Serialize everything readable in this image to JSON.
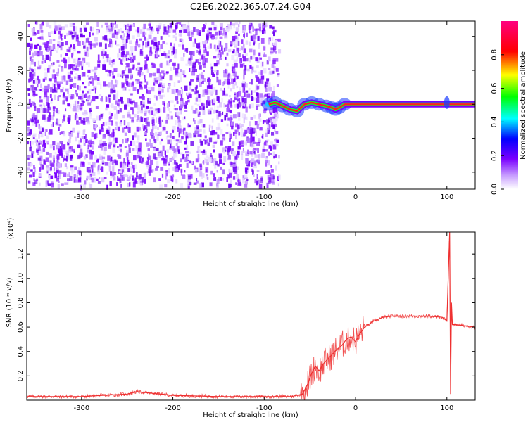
{
  "figure": {
    "title": "C2E6.2022.365.07.24.G04"
  },
  "chart_data": [
    {
      "type": "heatmap",
      "xlabel": "Height of straight line (km)",
      "ylabel": "Frequency (Hz)",
      "xlim": [
        -360,
        131
      ],
      "ylim": [
        -50,
        49
      ],
      "xticks": [
        -300,
        -200,
        -100,
        0,
        100
      ],
      "yticks": [
        -40,
        -20,
        0,
        20,
        40
      ],
      "noise_region_x": [
        -360,
        -80
      ],
      "signal_line": {
        "x": [
          -95,
          -88,
          -80,
          -72,
          -64,
          -56,
          -48,
          -40,
          -32,
          -26,
          -22,
          -18,
          -12,
          0,
          40,
          80,
          131
        ],
        "freq": [
          0,
          1,
          -1,
          -3,
          -4,
          0,
          1,
          0,
          -1,
          -2,
          -3,
          -2,
          0,
          0,
          0,
          0,
          0
        ]
      },
      "colorbar": {
        "label": "Normalized spectral amplitude",
        "range": [
          0.0,
          1.0
        ],
        "ticks": [
          "0.0",
          "0.2",
          "0.4",
          "0.6",
          "0.8"
        ],
        "ticks_values": [
          0.0,
          0.2,
          0.4,
          0.6,
          0.8
        ],
        "colormap": [
          "#ffffff",
          "#7a00ff",
          "#0000ff",
          "#00ffff",
          "#00ff00",
          "#ffff00",
          "#ff0000",
          "#ff0080"
        ]
      }
    },
    {
      "type": "line",
      "xlabel": "Height of straight line (km)",
      "ylabel": "SNR (10 * v/v)",
      "scale_note": "(x10⁴)",
      "xlim": [
        -360,
        131
      ],
      "ylim": [
        0,
        1.38
      ],
      "xticks": [
        -300,
        -200,
        -100,
        0,
        100
      ],
      "yticks": [
        0.2,
        0.4,
        0.6,
        0.8,
        1.0,
        1.2
      ],
      "series": [
        {
          "color": "#ee3030",
          "x": [
            -360,
            -300,
            -250,
            -240,
            -200,
            -150,
            -100,
            -70,
            -58,
            -52,
            -48,
            -44,
            -40,
            -35,
            -30,
            -25,
            -20,
            -15,
            -10,
            -5,
            0,
            5,
            10,
            20,
            30,
            40,
            60,
            80,
            95,
            100,
            103,
            104,
            105,
            106,
            110,
            120,
            131
          ],
          "values": [
            0.03,
            0.03,
            0.05,
            0.07,
            0.04,
            0.03,
            0.03,
            0.03,
            0.05,
            0.14,
            0.22,
            0.28,
            0.24,
            0.3,
            0.34,
            0.38,
            0.42,
            0.45,
            0.5,
            0.52,
            0.48,
            0.55,
            0.6,
            0.65,
            0.68,
            0.69,
            0.69,
            0.69,
            0.68,
            0.65,
            1.38,
            0.05,
            0.8,
            0.62,
            0.62,
            0.61,
            0.6
          ]
        }
      ]
    }
  ]
}
